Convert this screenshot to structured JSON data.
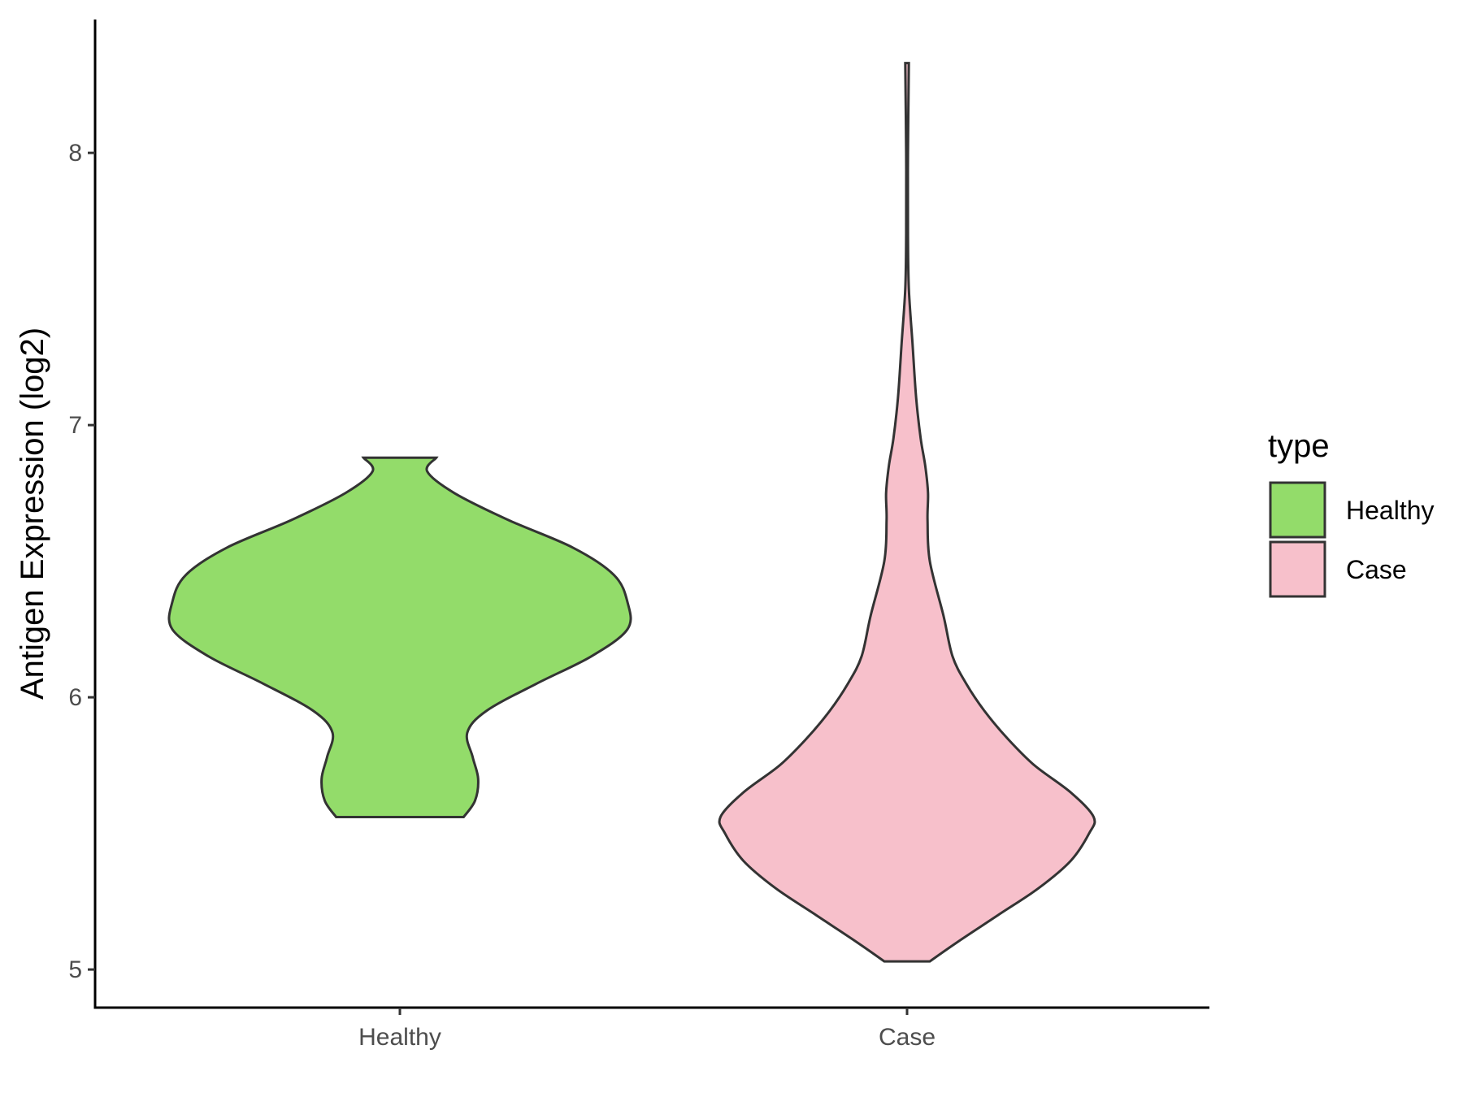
{
  "chart_data": {
    "type": "violin",
    "title": "",
    "xlabel": "",
    "ylabel": "Antigen Expression (log2)",
    "ylim": [
      4.86,
      8.49
    ],
    "yticks": [
      "5",
      "6",
      "7",
      "8"
    ],
    "categories": [
      "Healthy",
      "Case"
    ],
    "grid": false,
    "legend": {
      "title": "type",
      "position": "right",
      "entries": [
        {
          "label": "Healthy",
          "color": "#93DC6A"
        },
        {
          "label": "Case",
          "color": "#F7C0CB"
        }
      ]
    },
    "series": [
      {
        "category": "Healthy",
        "color": "#93DC6A",
        "min": 5.56,
        "max": 6.88,
        "profile": [
          [
            5.56,
            0.14
          ],
          [
            5.62,
            0.165
          ],
          [
            5.7,
            0.172
          ],
          [
            5.78,
            0.16
          ],
          [
            5.87,
            0.148
          ],
          [
            5.95,
            0.19
          ],
          [
            6.05,
            0.3
          ],
          [
            6.15,
            0.42
          ],
          [
            6.25,
            0.5
          ],
          [
            6.35,
            0.5
          ],
          [
            6.45,
            0.47
          ],
          [
            6.55,
            0.38
          ],
          [
            6.65,
            0.24
          ],
          [
            6.75,
            0.12
          ],
          [
            6.83,
            0.06
          ],
          [
            6.88,
            0.08
          ]
        ]
      },
      {
        "category": "Case",
        "color": "#F7C0CB",
        "min": 5.03,
        "max": 8.33,
        "profile": [
          [
            5.03,
            0.05
          ],
          [
            5.1,
            0.11
          ],
          [
            5.2,
            0.2
          ],
          [
            5.3,
            0.29
          ],
          [
            5.4,
            0.36
          ],
          [
            5.5,
            0.4
          ],
          [
            5.56,
            0.41
          ],
          [
            5.65,
            0.36
          ],
          [
            5.75,
            0.28
          ],
          [
            5.85,
            0.22
          ],
          [
            5.95,
            0.17
          ],
          [
            6.05,
            0.13
          ],
          [
            6.15,
            0.1
          ],
          [
            6.3,
            0.08
          ],
          [
            6.5,
            0.05
          ],
          [
            6.65,
            0.045
          ],
          [
            6.75,
            0.046
          ],
          [
            6.85,
            0.04
          ],
          [
            6.95,
            0.03
          ],
          [
            7.1,
            0.02
          ],
          [
            7.3,
            0.012
          ],
          [
            7.5,
            0.004
          ],
          [
            7.7,
            0.002
          ],
          [
            8.0,
            0.002
          ],
          [
            8.33,
            0.004
          ]
        ]
      }
    ]
  }
}
